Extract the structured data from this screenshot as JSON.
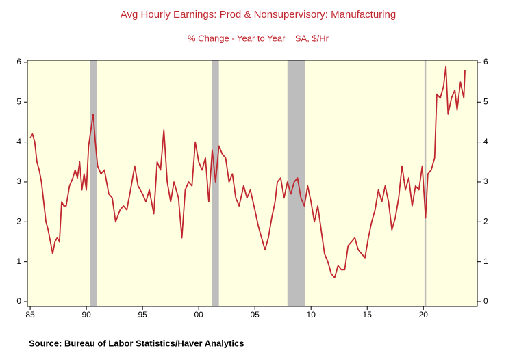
{
  "chart_data": {
    "type": "line",
    "title": "Avg Hourly Earnings: Prod & Nonsupervisory: Manufacturing",
    "subtitle": "% Change - Year to Year    SA, $/Hr",
    "source": "Source:  Bureau of Labor Statistics/Haver Analytics",
    "color": "#c0262e",
    "x": [
      1985.0,
      1985.2,
      1985.4,
      1985.6,
      1985.8,
      1986.0,
      1986.2,
      1986.4,
      1986.6,
      1986.8,
      1987.0,
      1987.2,
      1987.4,
      1987.6,
      1987.8,
      1988.0,
      1988.2,
      1988.5,
      1988.8,
      1989.0,
      1989.2,
      1989.4,
      1989.6,
      1989.8,
      1990.0,
      1990.2,
      1990.4,
      1990.6,
      1990.8,
      1991.0,
      1991.3,
      1991.6,
      1992.0,
      1992.3,
      1992.6,
      1993.0,
      1993.3,
      1993.6,
      1994.0,
      1994.3,
      1994.6,
      1995.0,
      1995.3,
      1995.6,
      1996.0,
      1996.3,
      1996.6,
      1996.9,
      1997.2,
      1997.5,
      1997.8,
      1998.2,
      1998.5,
      1998.8,
      1999.1,
      1999.4,
      1999.7,
      2000.0,
      2000.3,
      2000.6,
      2000.9,
      2001.2,
      2001.5,
      2001.8,
      2002.1,
      2002.4,
      2002.7,
      2003.0,
      2003.3,
      2003.6,
      2004.0,
      2004.3,
      2004.6,
      2005.0,
      2005.3,
      2005.6,
      2005.9,
      2006.2,
      2006.5,
      2006.8,
      2007.0,
      2007.3,
      2007.6,
      2007.9,
      2008.2,
      2008.5,
      2008.8,
      2009.1,
      2009.4,
      2009.7,
      2010.0,
      2010.3,
      2010.6,
      2010.9,
      2011.2,
      2011.5,
      2011.8,
      2012.1,
      2012.4,
      2012.7,
      2013.0,
      2013.3,
      2013.6,
      2013.9,
      2014.2,
      2014.5,
      2014.8,
      2015.1,
      2015.4,
      2015.7,
      2016.0,
      2016.3,
      2016.6,
      2016.9,
      2017.2,
      2017.5,
      2017.8,
      2018.1,
      2018.4,
      2018.7,
      2019.0,
      2019.3,
      2019.6,
      2019.9,
      2020.2,
      2020.4,
      2020.7,
      2021.0,
      2021.2,
      2021.5,
      2021.8,
      2022.0,
      2022.2,
      2022.5,
      2022.8,
      2023.0,
      2023.3,
      2023.6,
      2023.7
    ],
    "values": [
      4.1,
      4.2,
      4.0,
      3.5,
      3.3,
      3.0,
      2.5,
      2.0,
      1.8,
      1.5,
      1.2,
      1.5,
      1.6,
      1.5,
      2.5,
      2.4,
      2.4,
      2.9,
      3.1,
      3.3,
      3.1,
      3.5,
      2.8,
      3.2,
      2.8,
      3.9,
      4.3,
      4.7,
      4.0,
      3.4,
      3.2,
      3.3,
      2.7,
      2.6,
      2.0,
      2.3,
      2.4,
      2.3,
      2.9,
      3.4,
      2.9,
      2.7,
      2.5,
      2.8,
      2.2,
      3.5,
      3.3,
      4.3,
      3.0,
      2.5,
      3.0,
      2.6,
      1.6,
      2.8,
      3.0,
      2.9,
      4.0,
      3.5,
      3.3,
      3.6,
      2.5,
      3.8,
      3.0,
      3.9,
      3.7,
      3.6,
      3.0,
      3.2,
      2.6,
      2.4,
      2.9,
      2.6,
      2.8,
      2.3,
      1.9,
      1.6,
      1.3,
      1.6,
      2.1,
      2.5,
      3.0,
      3.1,
      2.6,
      3.0,
      2.7,
      3.0,
      3.1,
      2.6,
      2.4,
      2.9,
      2.5,
      2.0,
      2.4,
      1.8,
      1.2,
      1.0,
      0.7,
      0.6,
      0.9,
      0.8,
      0.8,
      1.4,
      1.5,
      1.6,
      1.3,
      1.2,
      1.1,
      1.6,
      2.0,
      2.3,
      2.8,
      2.5,
      2.9,
      2.5,
      1.8,
      2.1,
      2.6,
      3.4,
      2.8,
      3.1,
      2.4,
      2.9,
      2.8,
      3.4,
      2.1,
      3.2,
      3.3,
      3.6,
      5.2,
      5.1,
      5.4,
      5.9,
      4.7,
      5.1,
      5.3,
      4.8,
      5.5,
      5.1,
      5.8
    ],
    "recessions": [
      [
        1990.3,
        1990.95
      ],
      [
        2001.15,
        2001.8
      ],
      [
        2007.9,
        2009.45
      ],
      [
        2020.1,
        2020.25
      ]
    ],
    "xlim": [
      1984.75,
      2024.8
    ],
    "ylim": [
      -0.12,
      6.05
    ],
    "xticks": [
      {
        "value": 1985,
        "label": "85"
      },
      {
        "value": 1990,
        "label": "90"
      },
      {
        "value": 1995,
        "label": "95"
      },
      {
        "value": 2000,
        "label": "00"
      },
      {
        "value": 2005,
        "label": "05"
      },
      {
        "value": 2010,
        "label": "10"
      },
      {
        "value": 2015,
        "label": "15"
      },
      {
        "value": 2020,
        "label": "20"
      }
    ],
    "yticks": [
      0,
      1,
      2,
      3,
      4,
      5,
      6
    ]
  }
}
